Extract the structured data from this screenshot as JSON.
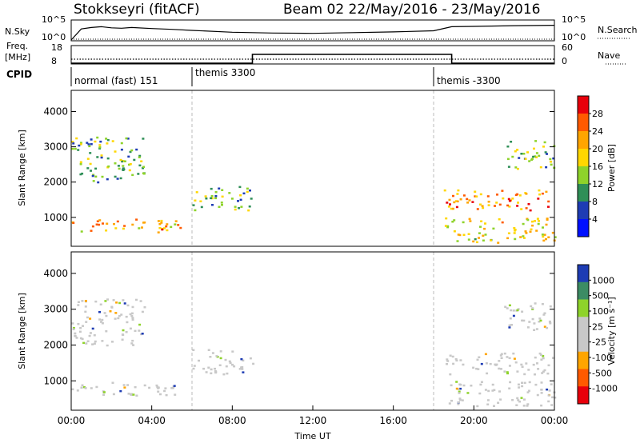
{
  "chart_data": [
    {
      "type": "line",
      "panel": "N.Sky / N.Search",
      "title": "Stokkseyri (fitACF)",
      "beam_title": "Beam 02 22/May/2016 - 23/May/2016",
      "left_label": "N.Sky",
      "right_label": "N.Search",
      "left_ticks": [
        "10^5",
        "10^0"
      ],
      "right_ticks": [
        "10^5",
        "10^0"
      ],
      "x": [
        0,
        0.5,
        1,
        1.5,
        2,
        2.5,
        3,
        4,
        5,
        6,
        8,
        10,
        12,
        14,
        16,
        18,
        18.9,
        20,
        22,
        24
      ],
      "series": [
        {
          "values": [
            0,
            3.0,
            3.4,
            3.6,
            3.3,
            3.2,
            3.4,
            3.1,
            2.9,
            2.6,
            2.1,
            1.9,
            1.8,
            2.0,
            2.2,
            2.5,
            3.6,
            3.7,
            3.9,
            4.0
          ]
        }
      ]
    },
    {
      "type": "line",
      "panel": "Freq / Nave",
      "left_label": "Freq.",
      "left_unit": "[MHz]",
      "right_label": "Nave",
      "left_ticks": [
        "18",
        "8"
      ],
      "right_ticks": [
        "60",
        "0"
      ],
      "x": [
        0,
        9.0,
        9.0,
        18.9,
        18.9,
        24
      ],
      "series": [
        {
          "values": [
            8,
            8,
            13.5,
            13.5,
            8,
            8
          ]
        },
        {
          "values": [
            15,
            15,
            15,
            15,
            15,
            15
          ]
        }
      ]
    },
    {
      "type": "table",
      "panel": "CPID",
      "label": "CPID",
      "segments": [
        {
          "start": 0,
          "text": "normal (fast) 151"
        },
        {
          "start": 6,
          "text": "themis 3300"
        },
        {
          "start": 18,
          "text": "themis -3300"
        }
      ]
    },
    {
      "type": "heatmap",
      "panel": "Power",
      "ylabel": "Slant Range [km]",
      "yticks": [
        1000,
        2000,
        3000,
        4000
      ],
      "ylim": [
        180,
        4600
      ],
      "colorbar_label": "Power [dB]",
      "colorbar_ticks": [
        28,
        24,
        20,
        16,
        12,
        8,
        4
      ],
      "colorbar_colors": [
        "#e8000b",
        "#ff5a00",
        "#ffa500",
        "#ffd700",
        "#8ed32a",
        "#2f8f57",
        "#1e3cb4",
        "#0010ff"
      ],
      "regions": [
        {
          "x": [
            0,
            5.4
          ],
          "y": [
            600,
            1000
          ],
          "level": 0.7
        },
        {
          "x": [
            0,
            3.6
          ],
          "y": [
            2000,
            3300
          ],
          "level": 0.35
        },
        {
          "x": [
            6,
            9
          ],
          "y": [
            1200,
            1900
          ],
          "level": 0.4
        },
        {
          "x": [
            18.5,
            24
          ],
          "y": [
            300,
            1000
          ],
          "level": 0.55
        },
        {
          "x": [
            18.5,
            24
          ],
          "y": [
            1200,
            1800
          ],
          "level": 0.8
        },
        {
          "x": [
            21.5,
            24
          ],
          "y": [
            2400,
            3200
          ],
          "level": 0.4
        }
      ]
    },
    {
      "type": "heatmap",
      "panel": "Velocity",
      "xlabel": "Time UT",
      "ylabel": "Slant Range [km]",
      "xticks": [
        "00:00",
        "04:00",
        "08:00",
        "12:00",
        "16:00",
        "20:00",
        "00:00"
      ],
      "yticks": [
        1000,
        2000,
        3000,
        4000
      ],
      "ylim": [
        180,
        4600
      ],
      "colorbar_label": "Velocity [m s⁻¹]",
      "colorbar_ticks": [
        1000,
        500,
        100,
        25,
        -25,
        -100,
        -500,
        -1000
      ],
      "colorbar_colors": [
        "#1e3cb4",
        "#3c8c64",
        "#8ed32a",
        "#c8c8c8",
        "#c8c8c8",
        "#ffa500",
        "#ff5a00",
        "#e8000b"
      ],
      "regions": [
        {
          "x": [
            0,
            5.4
          ],
          "y": [
            600,
            1000
          ],
          "level": "ground"
        },
        {
          "x": [
            0,
            3.6
          ],
          "y": [
            2000,
            3300
          ],
          "level": "ground"
        },
        {
          "x": [
            6,
            9
          ],
          "y": [
            1200,
            1900
          ],
          "level": "ground"
        },
        {
          "x": [
            18.5,
            24
          ],
          "y": [
            300,
            1000
          ],
          "level": "ground"
        },
        {
          "x": [
            18.5,
            24
          ],
          "y": [
            1200,
            1800
          ],
          "level": "ground"
        },
        {
          "x": [
            21.5,
            24
          ],
          "y": [
            2400,
            3200
          ],
          "level": "ground"
        }
      ]
    }
  ]
}
